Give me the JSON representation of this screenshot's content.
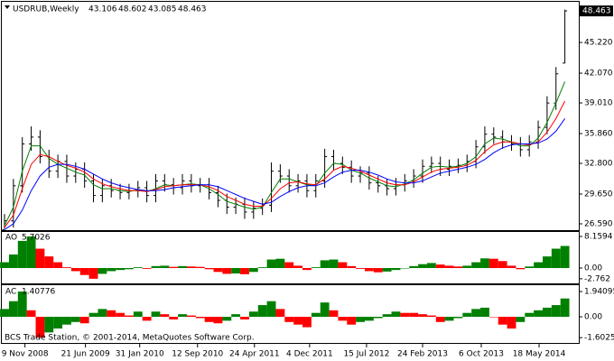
{
  "chart_data": [
    {
      "type": "ohlc",
      "title": "USDRUB,Weekly",
      "color": "#000000",
      "open": [
        26.0,
        26.9,
        30.5,
        34.8,
        35.5,
        33.5,
        32.0,
        33.0,
        31.5,
        32.2,
        31.0,
        29.5,
        30.5,
        30.0,
        29.8,
        30.0,
        30.3,
        29.5,
        31.0,
        30.6,
        30.3,
        31.0,
        30.5,
        30.6,
        29.8,
        29.0,
        28.3,
        28.6,
        27.8,
        28.2,
        28.5,
        32.0,
        31.5,
        30.5,
        31.0,
        30.0,
        31.0,
        33.5,
        32.8,
        32.4,
        31.5,
        31.8,
        30.8,
        30.5,
        30.2,
        30.6,
        31.0,
        31.5,
        32.5,
        32.8,
        32.2,
        32.5,
        32.6,
        33.0,
        34.5,
        35.8,
        35.5,
        35.0,
        34.8,
        34.2,
        35.0,
        36.5,
        39.0,
        43.106
      ],
      "high": [
        27.6,
        31.2,
        35.5,
        36.6,
        36.2,
        34.2,
        33.7,
        33.7,
        32.9,
        32.9,
        31.7,
        31.2,
        31.2,
        30.7,
        30.7,
        31.0,
        31.0,
        31.7,
        31.7,
        31.3,
        31.7,
        31.7,
        31.3,
        31.3,
        30.5,
        29.7,
        29.3,
        29.3,
        28.9,
        29.2,
        32.9,
        32.7,
        32.2,
        31.7,
        31.7,
        31.7,
        34.3,
        34.2,
        33.5,
        33.1,
        32.5,
        32.5,
        31.5,
        31.2,
        31.3,
        31.7,
        32.2,
        33.2,
        33.5,
        33.5,
        33.2,
        33.3,
        33.7,
        35.2,
        36.6,
        36.5,
        36.2,
        35.7,
        35.5,
        35.7,
        37.2,
        39.7,
        42.7,
        48.602
      ],
      "low": [
        26.1,
        26.2,
        29.8,
        34.1,
        32.8,
        31.3,
        31.3,
        30.8,
        30.8,
        30.3,
        28.8,
        28.8,
        29.3,
        29.1,
        29.1,
        29.3,
        28.8,
        28.8,
        29.9,
        29.6,
        29.6,
        29.8,
        29.8,
        29.1,
        28.3,
        27.6,
        27.6,
        27.1,
        27.1,
        27.5,
        27.8,
        30.8,
        29.8,
        29.8,
        29.3,
        29.3,
        30.3,
        32.1,
        31.7,
        30.8,
        30.8,
        30.1,
        29.8,
        29.5,
        29.5,
        29.9,
        30.3,
        30.8,
        31.8,
        31.5,
        31.5,
        31.8,
        31.9,
        32.3,
        33.8,
        34.8,
        34.3,
        34.1,
        33.5,
        33.5,
        34.3,
        35.8,
        38.3,
        43.085
      ],
      "close": [
        26.9,
        30.5,
        34.8,
        35.5,
        33.5,
        32.0,
        33.0,
        31.5,
        32.2,
        31.0,
        29.5,
        30.5,
        30.0,
        29.8,
        30.0,
        30.3,
        29.5,
        31.0,
        30.6,
        30.3,
        31.0,
        30.5,
        30.6,
        29.8,
        29.0,
        28.3,
        28.6,
        27.8,
        28.2,
        28.5,
        32.0,
        31.5,
        30.5,
        31.0,
        30.0,
        31.0,
        33.5,
        32.8,
        32.4,
        31.5,
        31.8,
        30.8,
        30.5,
        30.2,
        30.6,
        31.0,
        31.5,
        32.5,
        32.8,
        32.2,
        32.5,
        32.6,
        33.0,
        34.5,
        35.8,
        35.5,
        35.0,
        34.8,
        34.2,
        35.0,
        36.5,
        39.0,
        42.0,
        48.463
      ],
      "series": [
        {
          "color": "#008000",
          "values": [
            26.4,
            28.3,
            32.0,
            34.6,
            34.6,
            33.3,
            32.7,
            32.3,
            31.9,
            31.6,
            30.6,
            30.2,
            30.2,
            30.0,
            29.9,
            30.1,
            29.9,
            30.2,
            30.6,
            30.5,
            30.6,
            30.7,
            30.6,
            30.2,
            29.6,
            28.9,
            28.6,
            28.3,
            28.1,
            28.3,
            29.8,
            31.2,
            31.2,
            30.9,
            30.6,
            30.5,
            31.8,
            32.8,
            32.7,
            32.1,
            31.8,
            31.3,
            30.9,
            30.5,
            30.4,
            30.7,
            31.1,
            31.8,
            32.4,
            32.5,
            32.4,
            32.5,
            32.8,
            33.5,
            34.8,
            35.4,
            35.3,
            35.0,
            34.6,
            34.6,
            35.4,
            37.0,
            39.0,
            41.2
          ]
        },
        {
          "color": "#ff0000",
          "values": [
            26.2,
            27.5,
            30.2,
            32.7,
            33.7,
            33.5,
            33.0,
            32.6,
            32.3,
            31.9,
            31.2,
            30.7,
            30.4,
            30.2,
            30.0,
            30.0,
            29.9,
            30.1,
            30.4,
            30.5,
            30.6,
            30.6,
            30.6,
            30.4,
            30.0,
            29.4,
            29.0,
            28.6,
            28.4,
            28.4,
            29.2,
            30.2,
            30.8,
            30.9,
            30.7,
            30.6,
            31.2,
            32.1,
            32.5,
            32.3,
            32.0,
            31.6,
            31.2,
            30.8,
            30.6,
            30.6,
            30.9,
            31.4,
            31.9,
            32.2,
            32.3,
            32.4,
            32.6,
            33.1,
            34.0,
            34.7,
            35.0,
            35.0,
            34.8,
            34.7,
            35.0,
            36.0,
            37.4,
            39.2
          ]
        },
        {
          "color": "#0000ff",
          "values": [
            26.0,
            26.6,
            28.0,
            30.0,
            31.5,
            32.4,
            32.7,
            32.7,
            32.5,
            32.2,
            31.7,
            31.2,
            30.8,
            30.5,
            30.3,
            30.1,
            30.0,
            30.0,
            30.1,
            30.3,
            30.4,
            30.5,
            30.6,
            30.6,
            30.4,
            30.0,
            29.6,
            29.2,
            28.9,
            28.6,
            28.8,
            29.4,
            29.9,
            30.3,
            30.5,
            30.5,
            30.8,
            31.4,
            31.9,
            32.1,
            32.1,
            31.9,
            31.6,
            31.2,
            30.9,
            30.8,
            30.8,
            31.0,
            31.4,
            31.8,
            32.0,
            32.2,
            32.4,
            32.7,
            33.2,
            33.9,
            34.4,
            34.7,
            34.8,
            34.8,
            34.9,
            35.3,
            36.1,
            37.4
          ]
        }
      ],
      "ylim": [
        25.94,
        49.4
      ],
      "yticks": [
        {
          "value": 26.59,
          "label": "26.590"
        },
        {
          "value": 29.65,
          "label": "29.650"
        },
        {
          "value": 32.8,
          "label": "32.800"
        },
        {
          "value": 35.86,
          "label": "35.860"
        },
        {
          "value": 39.01,
          "label": "39.010"
        },
        {
          "value": 42.07,
          "label": "42.070"
        },
        {
          "value": 45.22,
          "label": "45.220"
        }
      ],
      "xlim": [
        -0.5,
        64
      ],
      "xticks": [
        {
          "value": 2.3,
          "label": "9 Nov 2008"
        },
        {
          "value": 9.1,
          "label": "21 Jun 2009"
        },
        {
          "value": 15.2,
          "label": "31 Jan 2010"
        },
        {
          "value": 21.7,
          "label": "12 Sep 2010"
        },
        {
          "value": 28.1,
          "label": "24 Apr 2011"
        },
        {
          "value": 34.3,
          "label": "4 Dec 2011"
        },
        {
          "value": 40.7,
          "label": "15 Jul 2012"
        },
        {
          "value": 47.0,
          "label": "24 Feb 2013"
        },
        {
          "value": 53.6,
          "label": "6 Oct 2013"
        },
        {
          "value": 60.1,
          "label": "18 May 2014"
        }
      ]
    },
    {
      "type": "bar",
      "name": "AO",
      "up_color": "#008000",
      "down_color": "#ff0000",
      "values": [
        1.5,
        3.5,
        7.0,
        8.1594,
        5.0,
        3.0,
        1.5,
        0.2,
        -0.8,
        -1.8,
        -2.762,
        -1.5,
        -0.8,
        -0.5,
        -0.3,
        0.2,
        -0.2,
        0.5,
        0.6,
        0.3,
        0.5,
        0.4,
        0.3,
        -0.3,
        -1.0,
        -1.5,
        -1.4,
        -1.6,
        -1.0,
        0.2,
        2.2,
        2.4,
        1.5,
        0.6,
        -0.5,
        0.2,
        2.0,
        2.2,
        1.5,
        0.5,
        -0.2,
        -0.8,
        -1.1,
        -0.9,
        -0.5,
        0.0,
        0.5,
        1.0,
        1.3,
        0.9,
        0.6,
        0.4,
        0.6,
        1.5,
        2.5,
        2.4,
        1.8,
        0.6,
        -0.3,
        0.4,
        1.5,
        3.0,
        5.0,
        5.7026
      ],
      "ylim": [
        -3.96,
        9.32
      ],
      "yticks": [
        -2.762,
        {
          "value": 0,
          "label": "0.00"
        },
        8.1594
      ]
    },
    {
      "type": "bar",
      "name": "AC",
      "up_color": "#008000",
      "down_color": "#ff0000",
      "values": [
        0.6,
        1.2,
        1.94095,
        0.5,
        -1.60258,
        -1.2,
        -0.9,
        -0.6,
        -0.4,
        -0.5,
        0.3,
        0.6,
        0.5,
        0.3,
        0.1,
        0.4,
        -0.3,
        0.4,
        0.2,
        -0.2,
        0.2,
        0.1,
        -0.1,
        -0.4,
        -0.5,
        -0.3,
        0.2,
        -0.2,
        0.4,
        0.9,
        1.2,
        0.6,
        -0.4,
        -0.6,
        -0.8,
        0.3,
        1.1,
        0.5,
        -0.3,
        -0.6,
        -0.4,
        -0.3,
        -0.1,
        0.2,
        0.4,
        0.3,
        0.3,
        0.2,
        0.1,
        -0.4,
        -0.3,
        -0.1,
        0.3,
        0.6,
        0.7,
        0.0,
        -0.6,
        -0.9,
        -0.4,
        0.3,
        0.5,
        0.7,
        0.9,
        1.40776
      ],
      "ylim": [
        -2.01,
        2.43
      ],
      "yticks": [
        -1.60258,
        {
          "value": 0,
          "label": "0.00"
        },
        1.94095
      ]
    }
  ],
  "footer": "BCS Trade Station, © 2001-2014, MetaQuotes Software Corp."
}
